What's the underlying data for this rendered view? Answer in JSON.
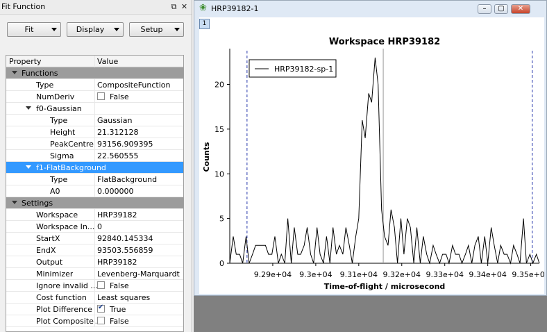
{
  "dock": {
    "title": "Fit Function",
    "buttons": {
      "fit": "Fit",
      "display": "Display",
      "setup": "Setup"
    }
  },
  "grid": {
    "header": {
      "property": "Property",
      "value": "Value"
    },
    "functions_group": "Functions",
    "type_label": "Type",
    "type_value": "CompositeFunction",
    "numderiv_label": "NumDeriv",
    "numderiv_value": "False",
    "f0_label": "f0-Gaussian",
    "f0_type_label": "Type",
    "f0_type_value": "Gaussian",
    "height_label": "Height",
    "height_value": "21.312128",
    "peak_label": "PeakCentre",
    "peak_value": "93156.909395",
    "sigma_label": "Sigma",
    "sigma_value": "22.560555",
    "f1_label": "f1-FlatBackground",
    "f1_type_label": "Type",
    "f1_type_value": "FlatBackground",
    "a0_label": "A0",
    "a0_value": "0.000000",
    "settings_group": "Settings",
    "workspace_label": "Workspace",
    "workspace_value": "HRP39182",
    "wsindex_label": "Workspace In...",
    "wsindex_value": "0",
    "startx_label": "StartX",
    "startx_value": "92840.145334",
    "endx_label": "EndX",
    "endx_value": "93503.556859",
    "output_label": "Output",
    "output_value": "HRP39182",
    "minimizer_label": "Minimizer",
    "minimizer_value": "Levenberg-Marquardt",
    "ignore_label": "Ignore invalid ...",
    "ignore_value": "False",
    "cost_label": "Cost function",
    "cost_value": "Least squares",
    "plotdiff_label": "Plot Difference",
    "plotdiff_value": "True",
    "plotcomp_label": "Plot Composite...",
    "plotcomp_value": "False"
  },
  "plot_window": {
    "title": "HRP39182-1",
    "badge": "1"
  },
  "chart_data": {
    "type": "line",
    "title": "Workspace HRP39182",
    "xlabel": "Time-of-flight / microsecond",
    "ylabel": "Counts",
    "xlim": [
      92800,
      93520
    ],
    "ylim": [
      0,
      24
    ],
    "xticks": [
      92900,
      93000,
      93100,
      93200,
      93300,
      93400,
      93500
    ],
    "xtick_labels": [
      "9.29e+04",
      "9.3e+04",
      "9.31e+04",
      "9.32e+04",
      "9.33e+04",
      "9.34e+04",
      "9.35e+04"
    ],
    "yticks": [
      0,
      5,
      10,
      15,
      20
    ],
    "ytick_labels": [
      "0",
      "5",
      "10",
      "15",
      "20"
    ],
    "legend": "top-left",
    "series": [
      {
        "name": "HRP39182-sp-1",
        "color": "#000000",
        "x": [
          92800,
          92808,
          92815,
          92823,
          92830,
          92838,
          92845,
          92853,
          92860,
          92868,
          92875,
          92883,
          92890,
          92898,
          92905,
          92913,
          92920,
          92928,
          92935,
          92943,
          92950,
          92958,
          92965,
          92973,
          92980,
          92988,
          92995,
          93003,
          93010,
          93018,
          93025,
          93033,
          93040,
          93048,
          93055,
          93063,
          93070,
          93078,
          93085,
          93093,
          93100,
          93108,
          93115,
          93123,
          93130,
          93138,
          93145,
          93153,
          93160,
          93168,
          93175,
          93183,
          93190,
          93198,
          93205,
          93213,
          93220,
          93228,
          93235,
          93243,
          93250,
          93258,
          93265,
          93273,
          93280,
          93288,
          93295,
          93303,
          93310,
          93318,
          93325,
          93333,
          93340,
          93348,
          93355,
          93363,
          93370,
          93378,
          93385,
          93393,
          93400,
          93408,
          93415,
          93423,
          93430,
          93438,
          93445,
          93453,
          93460,
          93468,
          93475,
          93483,
          93490,
          93498,
          93505,
          93513,
          93520
        ],
        "y": [
          0,
          3,
          1,
          1,
          0,
          3,
          0,
          1,
          2,
          2,
          2,
          2,
          1,
          1,
          3,
          0,
          1,
          0,
          5,
          0,
          4,
          1,
          1,
          2,
          4,
          1,
          0,
          4,
          1,
          0,
          3,
          0,
          4,
          1,
          2,
          1,
          4,
          2,
          0,
          3,
          5,
          16,
          14,
          19,
          18,
          23,
          20,
          6,
          3,
          2,
          6,
          4,
          0,
          5,
          1,
          5,
          4,
          0,
          4,
          0,
          3,
          1,
          0,
          2,
          1,
          0,
          1,
          1,
          0,
          2,
          1,
          1,
          0,
          1,
          2,
          0,
          2,
          3,
          0,
          3,
          0,
          4,
          2,
          0,
          2,
          1,
          1,
          0,
          2,
          1,
          0,
          5,
          0,
          1,
          0,
          1,
          0
        ]
      }
    ],
    "range_markers": [
      92840.145334,
      93503.556859
    ],
    "peak_marker": 93156.909395
  }
}
